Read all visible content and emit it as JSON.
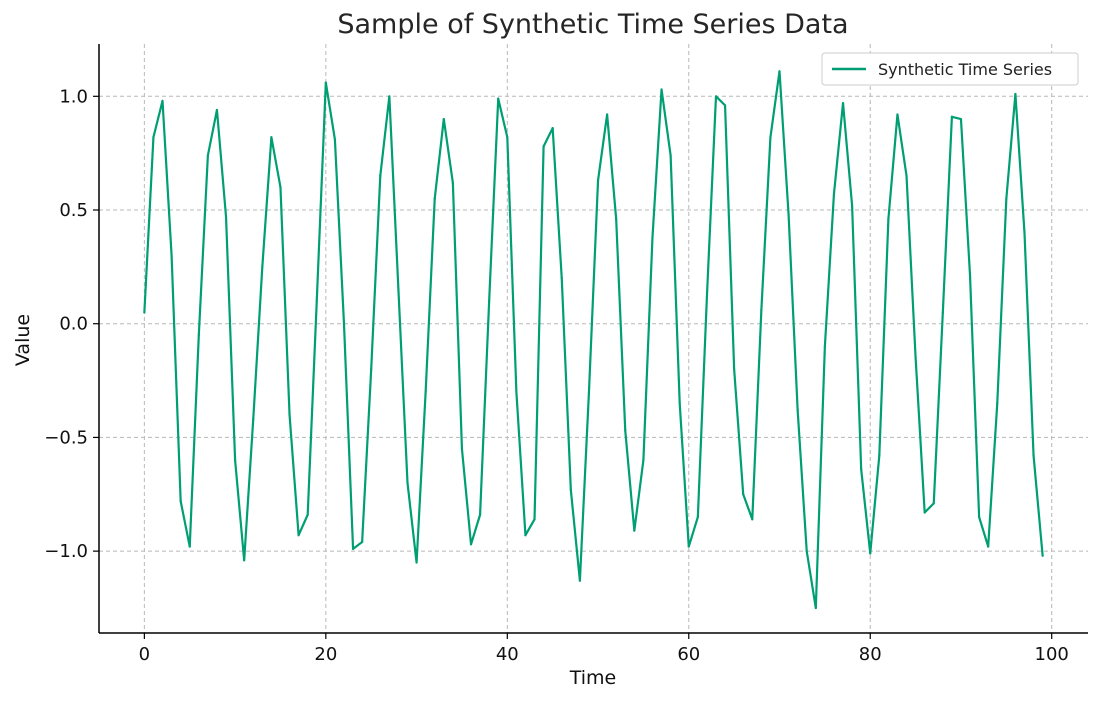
{
  "chart_data": {
    "type": "line",
    "title": "Sample of Synthetic Time Series Data",
    "xlabel": "Time",
    "ylabel": "Value",
    "xlim": [
      -5,
      104
    ],
    "ylim": [
      -1.36,
      1.23
    ],
    "xticks": [
      0,
      20,
      40,
      60,
      80,
      100
    ],
    "xtick_labels": [
      "0",
      "20",
      "40",
      "60",
      "80",
      "100"
    ],
    "yticks": [
      1.0,
      0.5,
      0.0,
      -0.5,
      -1.0
    ],
    "ytick_labels": [
      "1.0",
      "0.5",
      "0.0",
      "−0.5",
      "−1.0"
    ],
    "grid": true,
    "legend": "top-right",
    "series": [
      {
        "name": "Synthetic Time Series",
        "color": "#009e73",
        "x": [
          0,
          1,
          2,
          3,
          4,
          5,
          6,
          7,
          8,
          9,
          10,
          11,
          12,
          13,
          14,
          15,
          16,
          17,
          18,
          19,
          20,
          21,
          22,
          23,
          24,
          25,
          26,
          27,
          28,
          29,
          30,
          31,
          32,
          33,
          34,
          35,
          36,
          37,
          38,
          39,
          40,
          41,
          42,
          43,
          44,
          45,
          46,
          47,
          48,
          49,
          50,
          51,
          52,
          53,
          54,
          55,
          56,
          57,
          58,
          59,
          60,
          61,
          62,
          63,
          64,
          65,
          66,
          67,
          68,
          69,
          70,
          71,
          72,
          73,
          74,
          75,
          76,
          77,
          78,
          79,
          80,
          81,
          82,
          83,
          84,
          85,
          86,
          87,
          88,
          89,
          90,
          91,
          92,
          93,
          94,
          95,
          96,
          97,
          98,
          99
        ],
        "y": [
          0.05,
          0.82,
          0.98,
          0.3,
          -0.78,
          -0.98,
          -0.05,
          0.74,
          0.94,
          0.47,
          -0.6,
          -1.04,
          -0.42,
          0.25,
          0.82,
          0.6,
          -0.4,
          -0.93,
          -0.84,
          0.1,
          1.06,
          0.81,
          0.0,
          -0.99,
          -0.96,
          -0.2,
          0.65,
          1.0,
          0.15,
          -0.7,
          -1.05,
          -0.3,
          0.55,
          0.9,
          0.62,
          -0.55,
          -0.97,
          -0.84,
          0.1,
          0.99,
          0.82,
          -0.3,
          -0.93,
          -0.86,
          0.78,
          0.86,
          0.2,
          -0.73,
          -1.13,
          -0.3,
          0.63,
          0.92,
          0.46,
          -0.47,
          -0.91,
          -0.6,
          0.38,
          1.03,
          0.74,
          -0.35,
          -0.98,
          -0.85,
          0.12,
          1.0,
          0.96,
          -0.2,
          -0.75,
          -0.86,
          0.06,
          0.82,
          1.11,
          0.48,
          -0.38,
          -1.0,
          -1.25,
          -0.1,
          0.57,
          0.97,
          0.52,
          -0.64,
          -1.01,
          -0.58,
          0.46,
          0.92,
          0.65,
          -0.15,
          -0.83,
          -0.79,
          0.05,
          0.91,
          0.9,
          0.21,
          -0.85,
          -0.98,
          -0.35,
          0.55,
          1.01,
          0.4,
          -0.58,
          -1.02
        ]
      }
    ]
  }
}
